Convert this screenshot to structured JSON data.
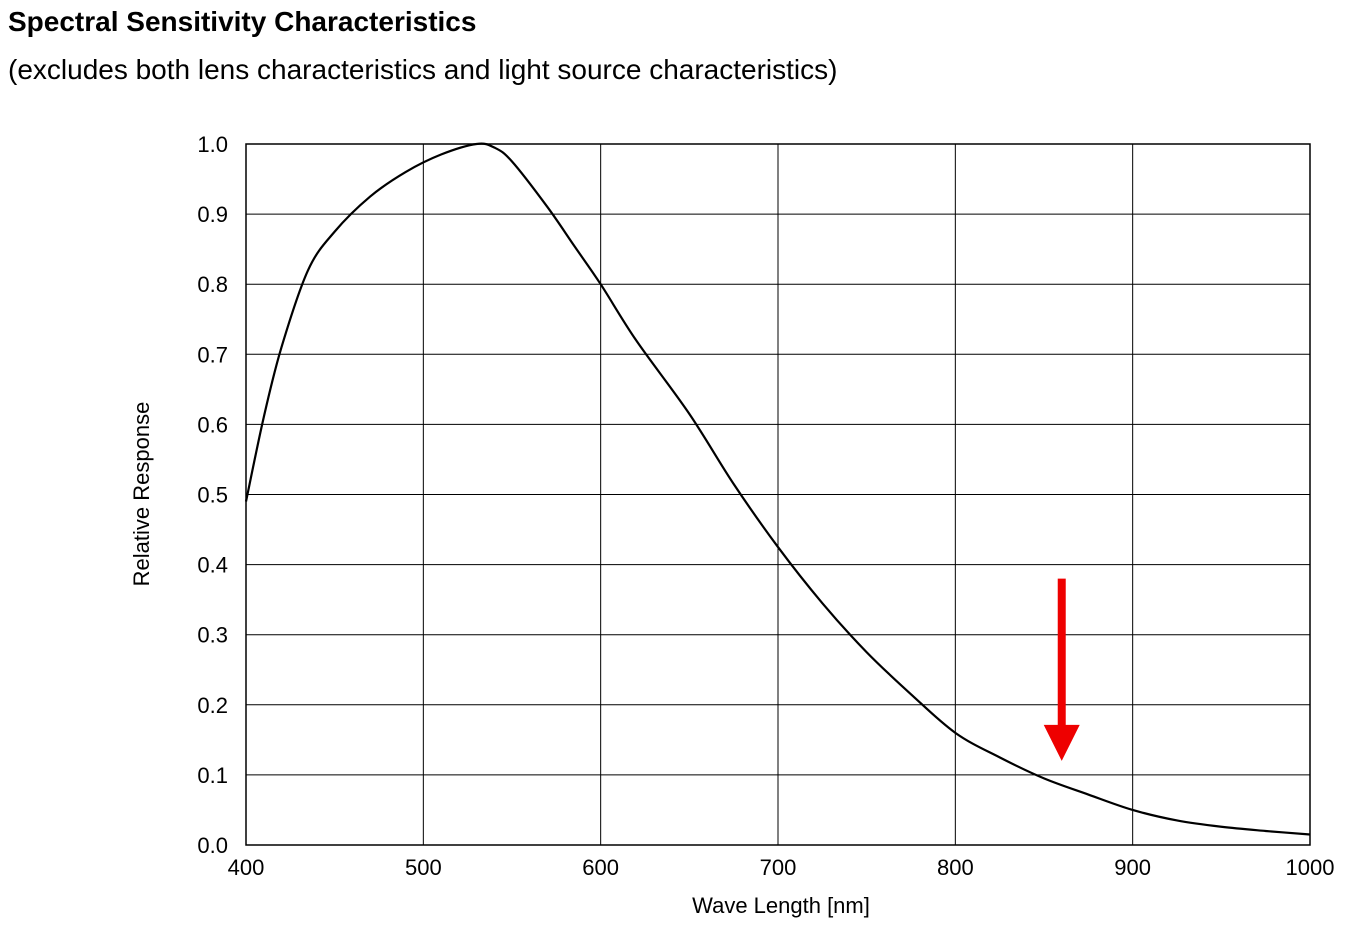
{
  "page": {
    "title": "Spectral Sensitivity Characteristics",
    "subtitle": "(excludes both lens characteristics and light source characteristics)"
  },
  "chart_data": {
    "type": "line",
    "xlabel": "Wave Length [nm]",
    "ylabel": "Relative Response",
    "xlim": [
      400,
      1000
    ],
    "ylim": [
      0.0,
      1.0
    ],
    "x_ticks": [
      400,
      500,
      600,
      700,
      800,
      900,
      1000
    ],
    "x_tick_labels": [
      "400",
      "500",
      "600",
      "700",
      "800",
      "900",
      "1000"
    ],
    "y_ticks": [
      0.0,
      0.1,
      0.2,
      0.3,
      0.4,
      0.5,
      0.6,
      0.7,
      0.8,
      0.9,
      1.0
    ],
    "y_tick_labels": [
      "0.0",
      "0.1",
      "0.2",
      "0.3",
      "0.4",
      "0.5",
      "0.6",
      "0.7",
      "0.8",
      "0.9",
      "1.0"
    ],
    "grid": true,
    "series": [
      {
        "color": "#000000",
        "x": [
          400,
          410,
          420,
          435,
          450,
          470,
          490,
          510,
          530,
          540,
          550,
          570,
          585,
          600,
          620,
          650,
          675,
          700,
          725,
          750,
          775,
          800,
          825,
          850,
          875,
          900,
          925,
          950,
          975,
          1000
        ],
        "y": [
          0.49,
          0.61,
          0.71,
          0.82,
          0.875,
          0.925,
          0.96,
          0.985,
          1.0,
          0.995,
          0.975,
          0.91,
          0.855,
          0.8,
          0.72,
          0.615,
          0.515,
          0.425,
          0.345,
          0.275,
          0.215,
          0.16,
          0.125,
          0.095,
          0.072,
          0.05,
          0.035,
          0.026,
          0.02,
          0.015
        ]
      }
    ],
    "annotations": [
      {
        "type": "arrow",
        "color": "#ee0000",
        "direction": "down",
        "x": 860,
        "y_start": 0.38,
        "y_end": 0.12
      }
    ]
  }
}
